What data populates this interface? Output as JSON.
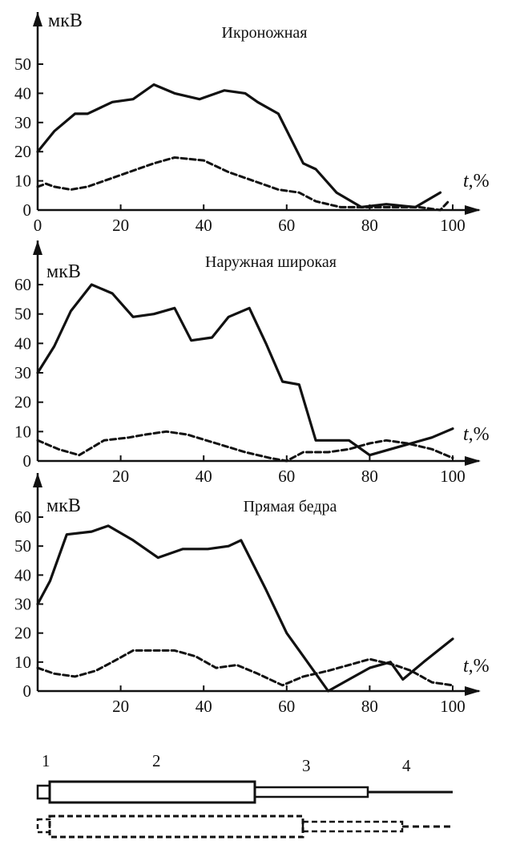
{
  "chart_data": [
    {
      "type": "line",
      "title": "Икроножная",
      "ylabel": "мкВ",
      "xlabel_var": "t",
      "xlabel_unit": ",%",
      "xlim": [
        0,
        100
      ],
      "ylim": [
        0,
        50
      ],
      "xticks": [
        0,
        20,
        40,
        60,
        80,
        100
      ],
      "yticks": [
        0,
        10,
        20,
        30,
        40,
        50
      ],
      "grid": false,
      "series": [
        {
          "style": "solid",
          "x": [
            0,
            4,
            9,
            12,
            18,
            23,
            28,
            33,
            39,
            45,
            50,
            53,
            58,
            64,
            67,
            72,
            78,
            84,
            91,
            97
          ],
          "y": [
            20,
            27,
            33,
            33,
            37,
            38,
            43,
            40,
            38,
            41,
            40,
            37,
            33,
            16,
            14,
            6,
            1,
            2,
            1,
            6
          ]
        },
        {
          "style": "dashed",
          "x": [
            0,
            2,
            4,
            8,
            12,
            18,
            24,
            28,
            33,
            40,
            46,
            52,
            58,
            63,
            67,
            73,
            80,
            86,
            92,
            97,
            99
          ],
          "y": [
            8,
            9,
            8,
            7,
            8,
            11,
            14,
            16,
            18,
            17,
            13,
            10,
            7,
            6,
            3,
            1,
            1,
            1,
            1,
            0,
            3
          ]
        }
      ]
    },
    {
      "type": "line",
      "title": "Наружная широкая",
      "ylabel": "мкВ",
      "xlabel_var": "t",
      "xlabel_unit": ",%",
      "xlim": [
        0,
        100
      ],
      "ylim": [
        0,
        60
      ],
      "xticks": [
        20,
        40,
        60,
        80,
        100
      ],
      "yticks": [
        0,
        10,
        20,
        30,
        40,
        50,
        60
      ],
      "grid": false,
      "series": [
        {
          "style": "solid",
          "x": [
            0,
            4,
            8,
            13,
            18,
            23,
            28,
            33,
            37,
            42,
            46,
            51,
            55,
            59,
            63,
            67,
            72,
            75,
            80,
            85,
            90,
            95,
            100
          ],
          "y": [
            30,
            39,
            51,
            60,
            57,
            49,
            50,
            52,
            41,
            42,
            49,
            52,
            40,
            27,
            26,
            7,
            7,
            7,
            2,
            4,
            6,
            8,
            11
          ]
        },
        {
          "style": "dashed",
          "x": [
            0,
            5,
            10,
            16,
            22,
            26,
            31,
            36,
            43,
            50,
            56,
            60,
            64,
            70,
            75,
            80,
            84,
            89,
            95,
            100
          ],
          "y": [
            7,
            4,
            2,
            7,
            8,
            9,
            10,
            9,
            6,
            3,
            1,
            0,
            3,
            3,
            4,
            6,
            7,
            6,
            4,
            1
          ]
        }
      ]
    },
    {
      "type": "line",
      "title": "Прямая бедра",
      "ylabel": "мкВ",
      "xlabel_var": "t",
      "xlabel_unit": ",%",
      "xlim": [
        0,
        100
      ],
      "ylim": [
        0,
        60
      ],
      "xticks": [
        20,
        40,
        60,
        80,
        100
      ],
      "yticks": [
        0,
        10,
        20,
        30,
        40,
        50,
        60
      ],
      "grid": false,
      "series": [
        {
          "style": "solid",
          "x": [
            0,
            3,
            7,
            13,
            17,
            23,
            29,
            35,
            41,
            46,
            49,
            55,
            60,
            65,
            70,
            75,
            80,
            85,
            88,
            93,
            100
          ],
          "y": [
            30,
            38,
            54,
            55,
            57,
            52,
            46,
            49,
            49,
            50,
            52,
            35,
            20,
            10,
            0,
            4,
            8,
            10,
            4,
            10,
            18
          ]
        },
        {
          "style": "dashed",
          "x": [
            0,
            4,
            9,
            14,
            18,
            23,
            28,
            33,
            38,
            43,
            48,
            53,
            59,
            64,
            70,
            75,
            80,
            86,
            90,
            95,
            100
          ],
          "y": [
            8,
            6,
            5,
            7,
            10,
            14,
            14,
            14,
            12,
            8,
            9,
            6,
            2,
            5,
            7,
            9,
            11,
            9,
            7,
            3,
            2
          ]
        }
      ]
    }
  ],
  "phase_diagram": {
    "labels": [
      "1",
      "2",
      "3",
      "4"
    ]
  }
}
